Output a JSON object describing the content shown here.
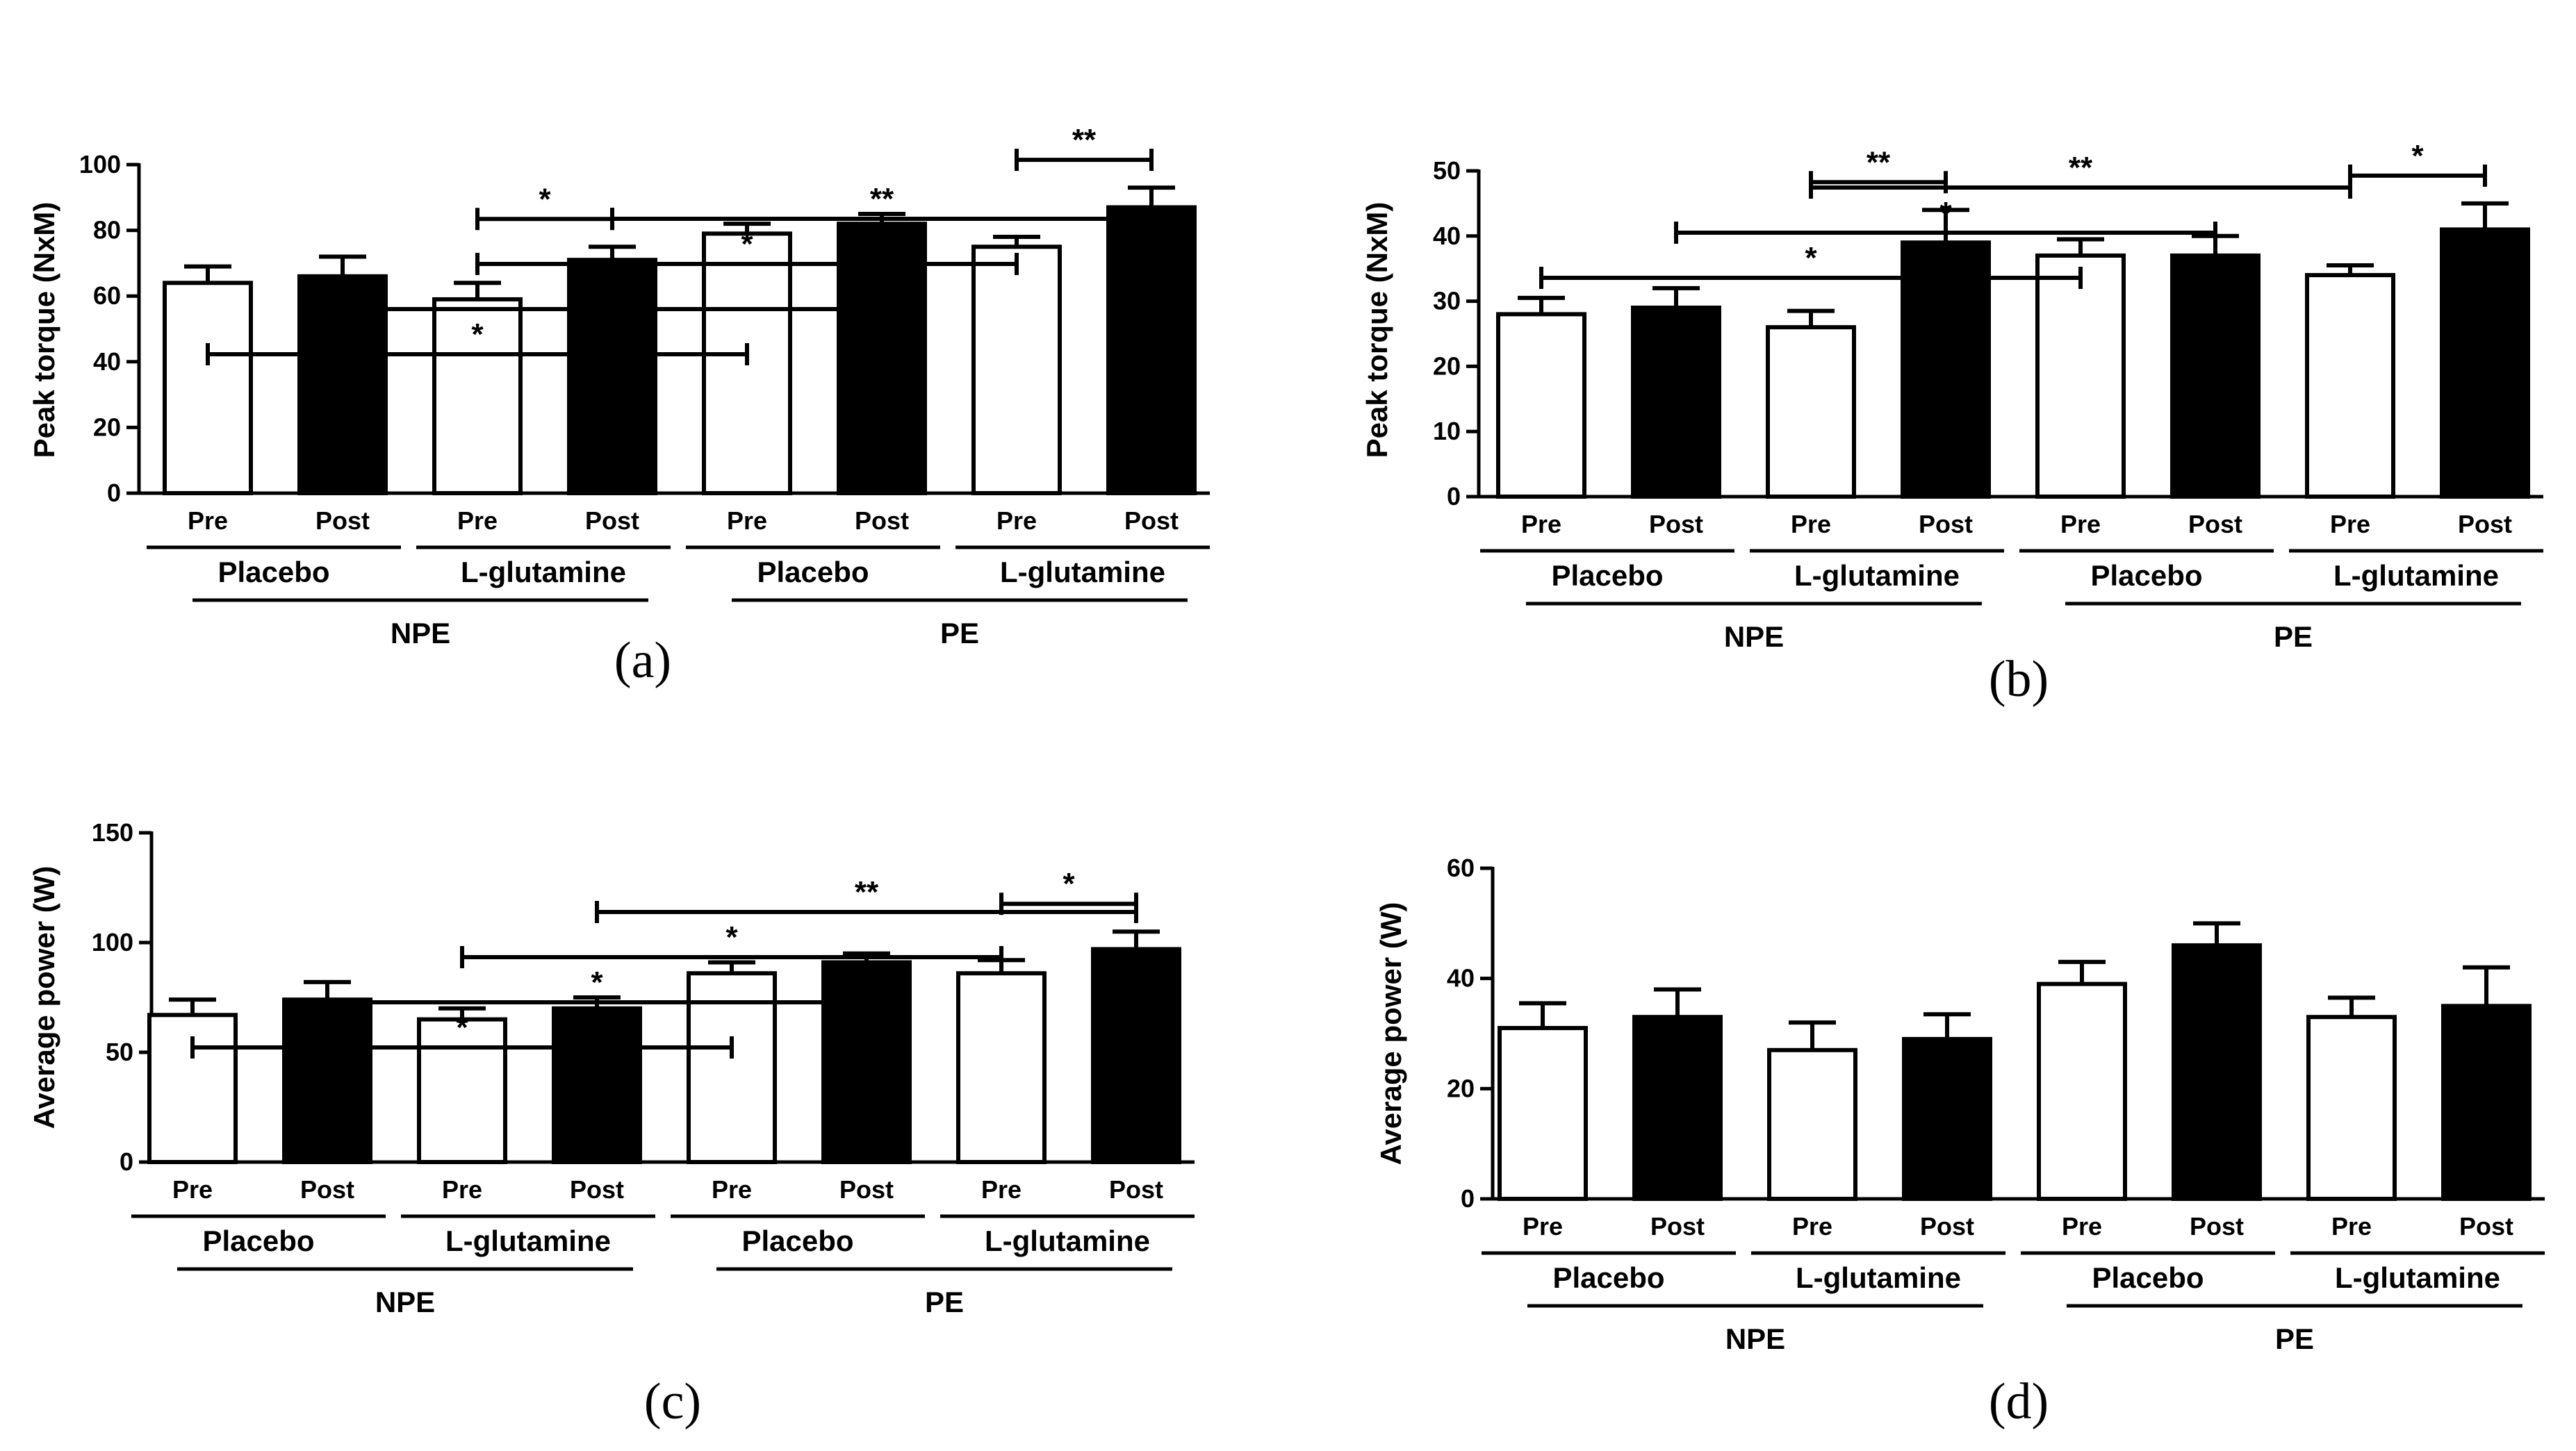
{
  "chart_data": [
    {
      "panel": "a",
      "type": "bar",
      "panel_label": "(a)",
      "ylabel": "Peak torque (NxM)",
      "ylim": [
        0,
        100
      ],
      "yticks": [
        0,
        20,
        40,
        60,
        80,
        100
      ],
      "categories": [
        "Pre",
        "Post",
        "Pre",
        "Post",
        "Pre",
        "Post",
        "Pre",
        "Post"
      ],
      "bar_fill": [
        "white",
        "black",
        "white",
        "black",
        "white",
        "black",
        "white",
        "black"
      ],
      "values": [
        64,
        66,
        59,
        71,
        79,
        82,
        75,
        87
      ],
      "errors": [
        5,
        6,
        5,
        4,
        3,
        3,
        3,
        6
      ],
      "groups": [
        "Placebo",
        "L-glutamine",
        "Placebo",
        "L-glutamine"
      ],
      "supergroups": [
        "NPE",
        "PE"
      ],
      "significance": [
        {
          "from": 2,
          "to": 3,
          "label": "*"
        },
        {
          "from": 6,
          "to": 7,
          "label": "**"
        },
        {
          "from": 0,
          "to": 4,
          "label": "*"
        },
        {
          "from": 1,
          "to": 5,
          "label": "*"
        },
        {
          "from": 2,
          "to": 6,
          "label": "*"
        },
        {
          "from": 3,
          "to": 7,
          "label": "**"
        }
      ]
    },
    {
      "panel": "b",
      "type": "bar",
      "panel_label": "(b)",
      "ylabel": "Peak torque (NxM)",
      "ylim": [
        0,
        50
      ],
      "yticks": [
        0,
        10,
        20,
        30,
        40,
        50
      ],
      "categories": [
        "Pre",
        "Post",
        "Pre",
        "Post",
        "Pre",
        "Post",
        "Pre",
        "Post"
      ],
      "bar_fill": [
        "white",
        "black",
        "white",
        "black",
        "white",
        "black",
        "white",
        "black"
      ],
      "values": [
        28,
        29,
        26,
        39,
        37,
        37,
        34,
        41
      ],
      "errors": [
        2.5,
        3,
        2.5,
        5,
        2.5,
        3,
        1.5,
        4
      ],
      "groups": [
        "Placebo",
        "L-glutamine",
        "Placebo",
        "L-glutamine"
      ],
      "supergroups": [
        "NPE",
        "PE"
      ],
      "significance": [
        {
          "from": 2,
          "to": 3,
          "label": "**"
        },
        {
          "from": 6,
          "to": 7,
          "label": "*"
        },
        {
          "from": 0,
          "to": 4,
          "label": "*"
        },
        {
          "from": 1,
          "to": 5,
          "label": "*"
        },
        {
          "from": 2,
          "to": 6,
          "label": "**"
        }
      ]
    },
    {
      "panel": "c",
      "type": "bar",
      "panel_label": "(c)",
      "ylabel": "Average power (W)",
      "ylim": [
        0,
        150
      ],
      "yticks": [
        0,
        50,
        100,
        150
      ],
      "categories": [
        "Pre",
        "Post",
        "Pre",
        "Post",
        "Pre",
        "Post",
        "Pre",
        "Post"
      ],
      "bar_fill": [
        "white",
        "black",
        "white",
        "black",
        "white",
        "black",
        "white",
        "black"
      ],
      "values": [
        67,
        74,
        65,
        70,
        86,
        91,
        86,
        97
      ],
      "errors": [
        7,
        8,
        5,
        5,
        5,
        4,
        6,
        8
      ],
      "groups": [
        "Placebo",
        "L-glutamine",
        "Placebo",
        "L-glutamine"
      ],
      "supergroups": [
        "NPE",
        "PE"
      ],
      "significance": [
        {
          "from": 6,
          "to": 7,
          "label": "*"
        },
        {
          "from": 0,
          "to": 4,
          "label": "*"
        },
        {
          "from": 1,
          "to": 5,
          "label": "*"
        },
        {
          "from": 2,
          "to": 6,
          "label": "*"
        },
        {
          "from": 3,
          "to": 7,
          "label": "**"
        }
      ]
    },
    {
      "panel": "d",
      "type": "bar",
      "panel_label": "(d)",
      "ylabel": "Average power (W)",
      "ylim": [
        0,
        60
      ],
      "yticks": [
        0,
        20,
        40,
        60
      ],
      "categories": [
        "Pre",
        "Post",
        "Pre",
        "Post",
        "Pre",
        "Post",
        "Pre",
        "Post"
      ],
      "bar_fill": [
        "white",
        "black",
        "white",
        "black",
        "white",
        "black",
        "white",
        "black"
      ],
      "values": [
        31,
        33,
        27,
        29,
        39,
        46,
        33,
        35
      ],
      "errors": [
        4.5,
        5,
        5,
        4.5,
        4,
        4,
        3.5,
        7
      ],
      "groups": [
        "Placebo",
        "L-glutamine",
        "Placebo",
        "L-glutamine"
      ],
      "supergroups": [
        "NPE",
        "PE"
      ],
      "significance": []
    }
  ]
}
